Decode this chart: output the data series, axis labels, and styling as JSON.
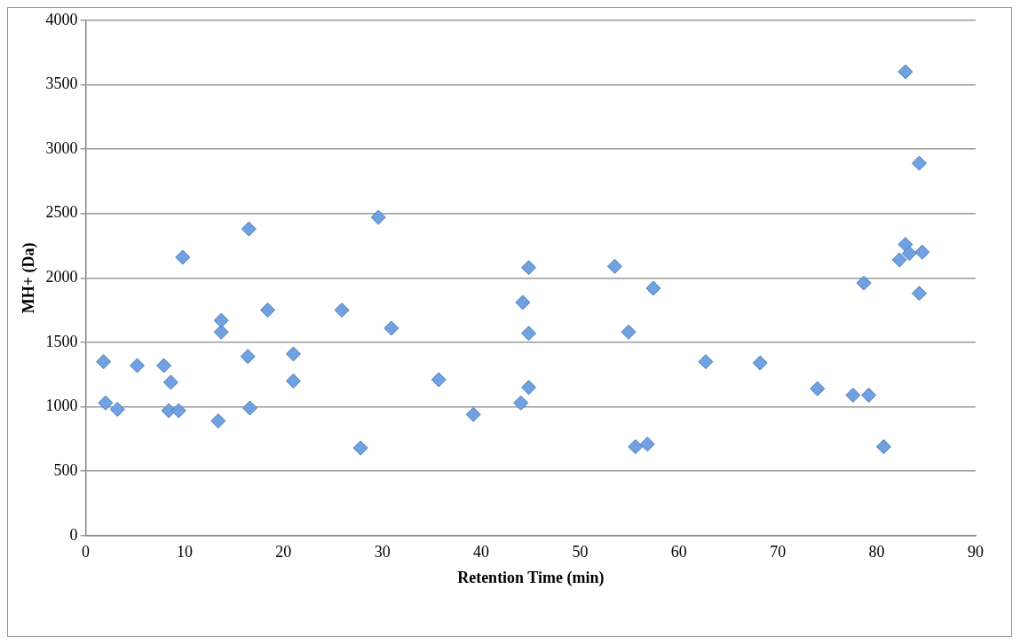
{
  "chart_data": {
    "type": "scatter",
    "xlabel": "Retention Time (min)",
    "ylabel": "MH+ (Da)",
    "x": [
      1.8,
      2.0,
      3.2,
      5.2,
      7.9,
      8.6,
      8.4,
      9.4,
      9.8,
      13.4,
      13.7,
      13.7,
      16.4,
      16.5,
      16.6,
      18.4,
      21.0,
      21.0,
      25.9,
      27.8,
      29.6,
      30.9,
      35.7,
      39.2,
      44.0,
      44.2,
      44.8,
      44.8,
      44.8,
      53.5,
      54.9,
      55.6,
      56.8,
      57.4,
      62.7,
      68.2,
      74.0,
      77.6,
      78.7,
      79.2,
      80.7,
      82.3,
      82.9,
      82.9,
      83.3,
      84.3,
      84.3,
      84.6
    ],
    "series": [
      {
        "color": "#71a1e0",
        "values": [
          1350,
          1030,
          980,
          1320,
          1320,
          1190,
          970,
          970,
          2160,
          890,
          1580,
          1670,
          1390,
          2380,
          990,
          1750,
          1410,
          1200,
          1750,
          680,
          2470,
          1610,
          1210,
          940,
          1030,
          1810,
          2080,
          1570,
          1150,
          2090,
          1580,
          690,
          710,
          1920,
          1350,
          1340,
          1140,
          1090,
          1960,
          1090,
          690,
          2140,
          3600,
          2260,
          2190,
          2890,
          1880,
          2200
        ]
      }
    ],
    "xlim": [
      0,
      90
    ],
    "xticks": [
      0,
      10,
      20,
      30,
      40,
      50,
      60,
      70,
      80,
      90
    ],
    "ylim": [
      0,
      4000
    ],
    "yticks": [
      0,
      500,
      1000,
      1500,
      2000,
      2500,
      3000,
      3500,
      4000
    ],
    "grid": "y",
    "legend": false,
    "marker": "diamond"
  }
}
